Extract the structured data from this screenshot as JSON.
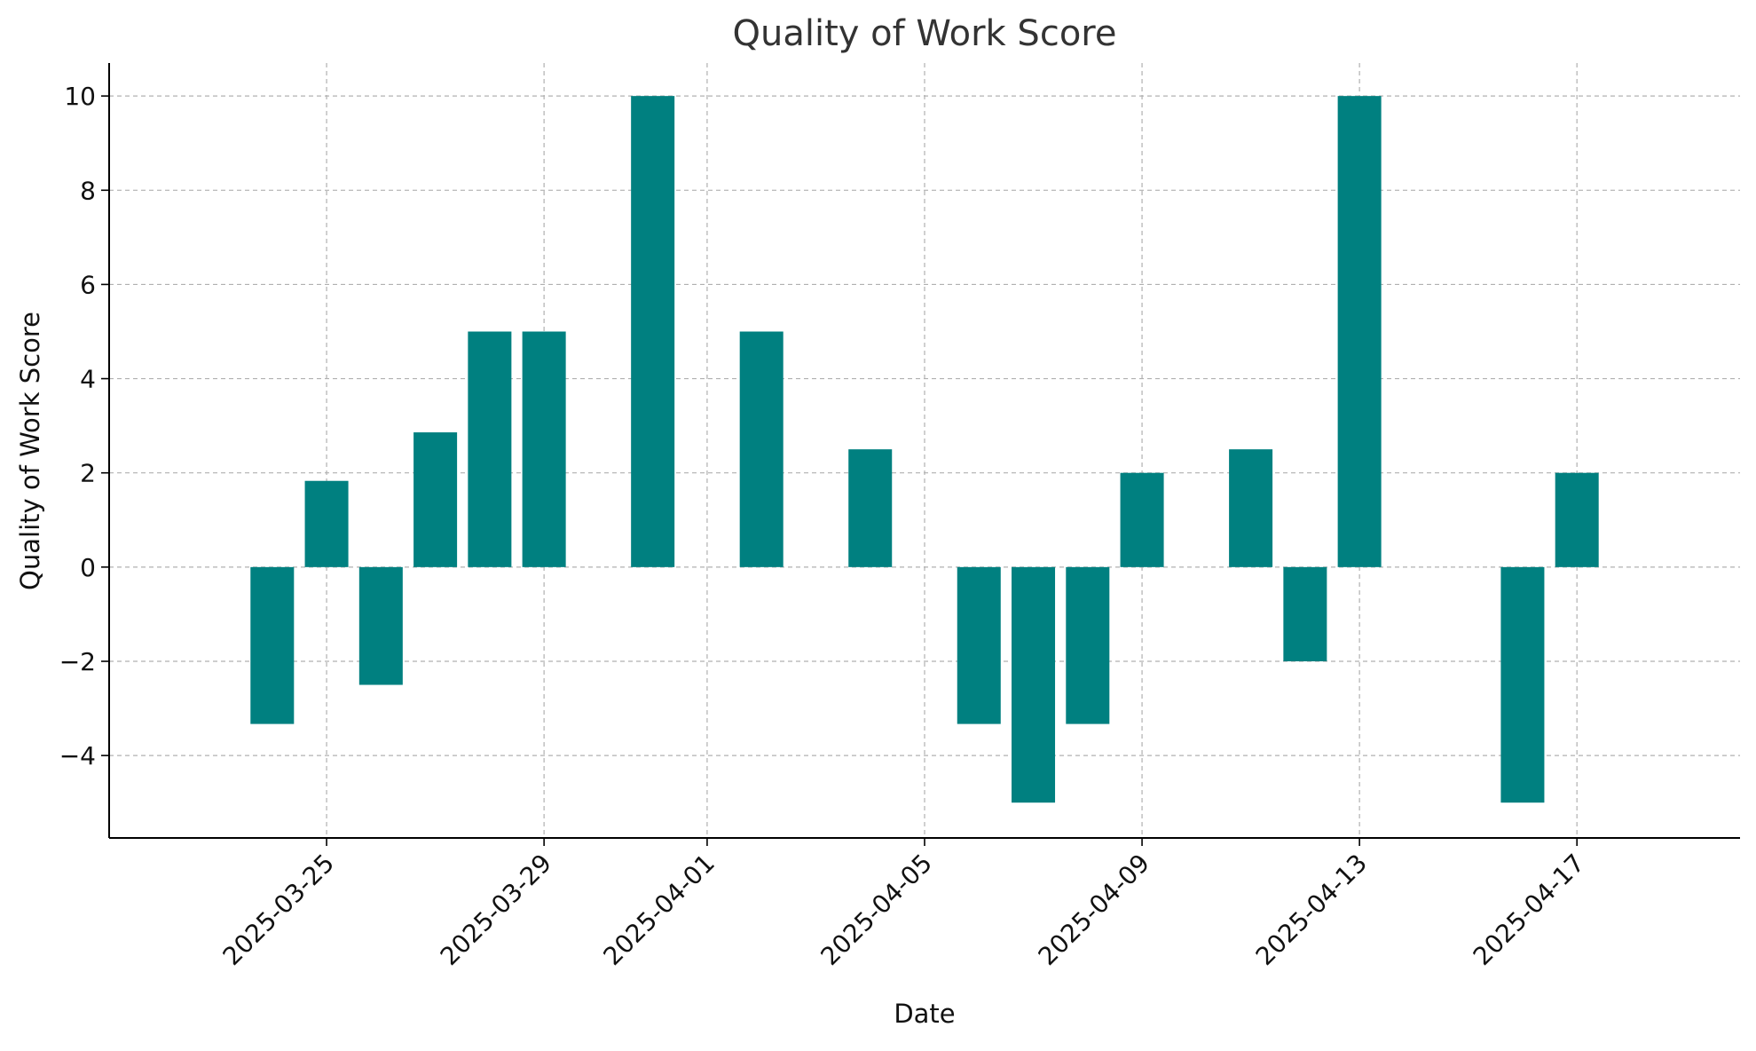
{
  "chart_data": {
    "type": "bar",
    "title": "Quality of Work Score",
    "xlabel": "Date",
    "ylabel": "Quality of Work Score",
    "x_axis_type": "date",
    "xlim": [
      "2025-03-21",
      "2025-04-20"
    ],
    "x_ticks": [
      "2025-03-25",
      "2025-03-29",
      "2025-04-01",
      "2025-04-05",
      "2025-04-09",
      "2025-04-13",
      "2025-04-17"
    ],
    "x_tick_labels": [
      "2025-03-25",
      "2025-03-29",
      "2025-04-01",
      "2025-04-05",
      "2025-04-09",
      "2025-04-13",
      "2025-04-17"
    ],
    "y_ticks": [
      -4,
      -2,
      0,
      2,
      4,
      6,
      8,
      10
    ],
    "y_tick_labels": [
      "−4",
      "−2",
      "0",
      "2",
      "4",
      "6",
      "8",
      "10"
    ],
    "ylim": [
      -5.75,
      10.7
    ],
    "grid": true,
    "bar_color": "#008080",
    "dates": [
      "2025-03-24",
      "2025-03-25",
      "2025-03-26",
      "2025-03-27",
      "2025-03-28",
      "2025-03-29",
      "2025-03-31",
      "2025-04-02",
      "2025-04-04",
      "2025-04-06",
      "2025-04-07",
      "2025-04-08",
      "2025-04-09",
      "2025-04-11",
      "2025-04-12",
      "2025-04-13",
      "2025-04-16",
      "2025-04-17"
    ],
    "values": [
      -3.33,
      1.83,
      -2.5,
      2.86,
      5,
      5,
      10,
      5,
      2.5,
      -3.33,
      -5,
      -3.33,
      2,
      2.5,
      -2,
      10,
      -5,
      2
    ]
  }
}
